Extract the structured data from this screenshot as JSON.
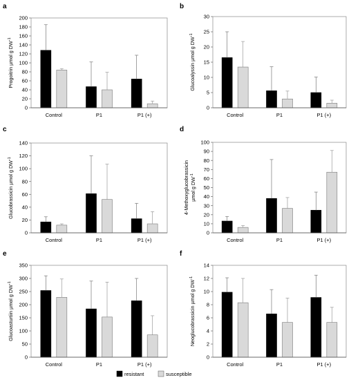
{
  "legend": [
    {
      "name": "resistant",
      "color": "#000000"
    },
    {
      "name": "susceptible",
      "color": "#d9d9d9"
    }
  ],
  "chart_data": [
    {
      "panel": "a",
      "type": "bar",
      "ylabel_main": "Progoitrin µmol g DW",
      "ylabel_sup": "-1",
      "ylabel_line2": "",
      "categories": [
        "Control",
        "P1",
        "P1 (+)"
      ],
      "ylim": [
        0,
        200
      ],
      "ticks": [
        0,
        20,
        40,
        60,
        80,
        100,
        120,
        140,
        160,
        180,
        200
      ],
      "series": [
        {
          "name": "resistant",
          "values": [
            128,
            47,
            64
          ],
          "errors": [
            57,
            55,
            53
          ]
        },
        {
          "name": "susceptible",
          "values": [
            84,
            40,
            9
          ],
          "errors": [
            3,
            39,
            6
          ]
        }
      ]
    },
    {
      "panel": "b",
      "type": "bar",
      "ylabel_main": "Glucoalyssin µmol g DW",
      "ylabel_sup": "-1",
      "ylabel_line2": "",
      "categories": [
        "Control",
        "P1",
        "P1 (+)"
      ],
      "ylim": [
        0,
        30
      ],
      "ticks": [
        0,
        5,
        10,
        15,
        20,
        25,
        30
      ],
      "series": [
        {
          "name": "resistant",
          "values": [
            16.5,
            5.6,
            5.0
          ],
          "errors": [
            8.5,
            7.9,
            5.1
          ]
        },
        {
          "name": "susceptible",
          "values": [
            13.4,
            2.9,
            1.5
          ],
          "errors": [
            8.4,
            2.6,
            1.0
          ]
        }
      ]
    },
    {
      "panel": "c",
      "type": "bar",
      "ylabel_main": "Glucobrassicin µmol g DW",
      "ylabel_sup": "-1",
      "ylabel_line2": "",
      "categories": [
        "Control",
        "P1",
        "P1 (+)"
      ],
      "ylim": [
        0,
        140
      ],
      "ticks": [
        0,
        20,
        40,
        60,
        80,
        100,
        120,
        140
      ],
      "series": [
        {
          "name": "resistant",
          "values": [
            17,
            61,
            22
          ],
          "errors": [
            8,
            59,
            24
          ]
        },
        {
          "name": "susceptible",
          "values": [
            12,
            52,
            14
          ],
          "errors": [
            2,
            55,
            19
          ]
        }
      ]
    },
    {
      "panel": "d",
      "type": "bar",
      "ylabel_main": "4-Methoxyglucobrassicin",
      "ylabel_sup": "-1",
      "ylabel_line2": "µmol g DW",
      "categories": [
        "Control",
        "P1",
        "P1 (+)"
      ],
      "ylim": [
        0,
        100
      ],
      "ticks": [
        0,
        10,
        20,
        30,
        40,
        50,
        60,
        70,
        80,
        90,
        100
      ],
      "series": [
        {
          "name": "resistant",
          "values": [
            13,
            38,
            25
          ],
          "errors": [
            5,
            43,
            20
          ]
        },
        {
          "name": "susceptible",
          "values": [
            6,
            27,
            67
          ],
          "errors": [
            2,
            12,
            24
          ]
        }
      ]
    },
    {
      "panel": "e",
      "type": "bar",
      "ylabel_main": "Glucoasturtiin µmol g DW",
      "ylabel_sup": "-1",
      "ylabel_line2": "",
      "categories": [
        "Control",
        "P1",
        "P1 (+)"
      ],
      "ylim": [
        0,
        350
      ],
      "ticks": [
        0,
        50,
        100,
        150,
        200,
        250,
        300,
        350
      ],
      "series": [
        {
          "name": "resistant",
          "values": [
            254,
            184,
            215
          ],
          "errors": [
            56,
            106,
            85
          ]
        },
        {
          "name": "susceptible",
          "values": [
            228,
            153,
            85
          ],
          "errors": [
            70,
            133,
            73
          ]
        }
      ]
    },
    {
      "panel": "f",
      "type": "bar",
      "ylabel_main": "Neoglucobrassicin µmol g DW",
      "ylabel_sup": "-1",
      "ylabel_line2": "",
      "categories": [
        "Control",
        "P1",
        "P1 (+)"
      ],
      "ylim": [
        0,
        14
      ],
      "ticks": [
        0,
        2,
        4,
        6,
        8,
        10,
        12,
        14
      ],
      "series": [
        {
          "name": "resistant",
          "values": [
            9.9,
            6.6,
            9.1
          ],
          "errors": [
            2.2,
            3.7,
            3.4
          ]
        },
        {
          "name": "susceptible",
          "values": [
            8.3,
            5.3,
            5.3
          ],
          "errors": [
            3.7,
            3.7,
            2.3
          ]
        }
      ]
    }
  ]
}
